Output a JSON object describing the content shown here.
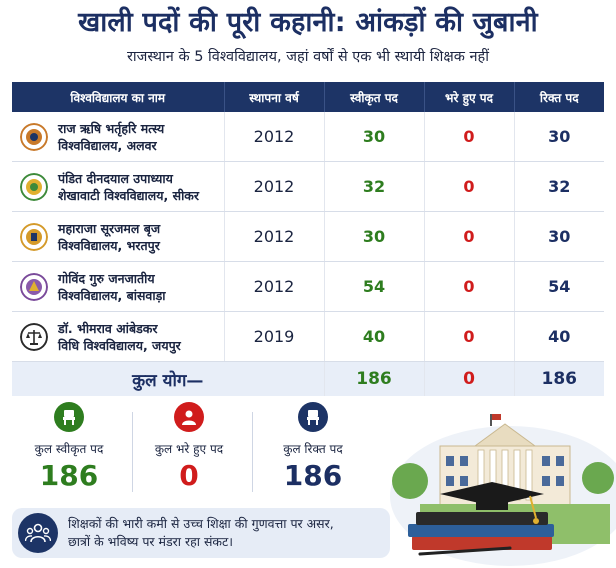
{
  "header": {
    "title": "खाली पदों की पूरी कहानी: आंकड़ों की जुबानी",
    "subtitle": "राजस्थान के 5 विश्वविद्यालय, जहां वर्षों से एक भी स्थायी शिक्षक नहीं"
  },
  "table": {
    "headers": [
      "विश्वविद्यालय का नाम",
      "स्थापना वर्ष",
      "स्वीकृत पद",
      "भरे हुए पद",
      "रिक्त पद"
    ],
    "rows": [
      {
        "name_l1": "राज ऋषि भर्तृहरि मत्स्य",
        "name_l2": "विश्वविद्यालय, अलवर",
        "year": "2012",
        "sanctioned": "30",
        "filled": "0",
        "vacant": "30",
        "logo_color": "#c8792a"
      },
      {
        "name_l1": "पंडित दीनदयाल उपाध्याय",
        "name_l2": "शेखावाटी विश्वविद्यालय, सीकर",
        "year": "2012",
        "sanctioned": "32",
        "filled": "0",
        "vacant": "32",
        "logo_color": "#3d8a3a"
      },
      {
        "name_l1": "महाराजा सूरजमल बृज",
        "name_l2": "विश्वविद्यालय, भरतपुर",
        "year": "2012",
        "sanctioned": "30",
        "filled": "0",
        "vacant": "30",
        "logo_color": "#d49a2a"
      },
      {
        "name_l1": "गोविंद गुरु जनजातीय",
        "name_l2": "विश्वविद्यालय, बांसवाड़ा",
        "year": "2012",
        "sanctioned": "54",
        "filled": "0",
        "vacant": "54",
        "logo_color": "#7a4a9a"
      },
      {
        "name_l1": "डॉ. भीमराव आंबेडकर",
        "name_l2": "विधि विश्वविद्यालय, जयपुर",
        "year": "2019",
        "sanctioned": "40",
        "filled": "0",
        "vacant": "40",
        "logo_color": "#2a2a2a"
      }
    ],
    "total": {
      "label": "कुल योग—",
      "sanctioned": "186",
      "filled": "0",
      "vacant": "186"
    }
  },
  "stats": [
    {
      "label": "कुल स्वीकृत पद",
      "value": "186",
      "color": "#2e7d1f",
      "icon": "chair-icon"
    },
    {
      "label": "कुल भरे हुए पद",
      "value": "0",
      "color": "#d01c1c",
      "icon": "person-icon"
    },
    {
      "label": "कुल रिक्त पद",
      "value": "186",
      "color": "#1c2f63",
      "icon": "chair-icon"
    }
  ],
  "banner": {
    "line1": "शिक्षकों की भारी कमी से उच्च शिक्षा की गुणवत्ता पर असर,",
    "line2": "छात्रों के भविष्य पर मंडरा रहा संकट।",
    "icon": "group-icon"
  },
  "colors": {
    "navy": "#1d3466",
    "green": "#2e7d1f",
    "red": "#d01c1c",
    "band": "#e8eef8"
  }
}
